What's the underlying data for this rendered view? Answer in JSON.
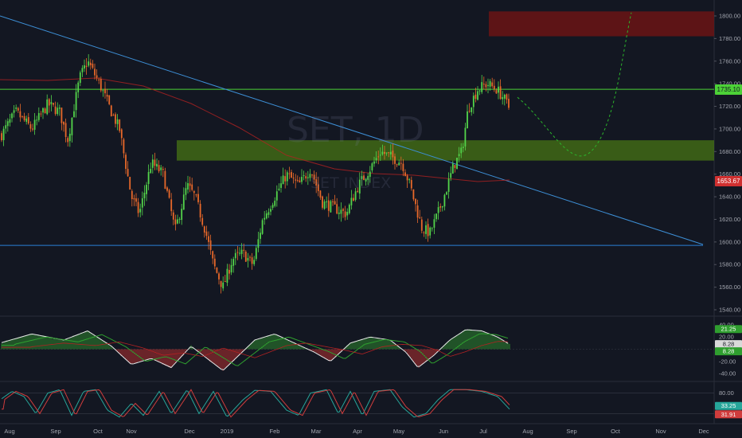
{
  "watermark": {
    "symbol": "SET, 1D",
    "name": "SET INDEX"
  },
  "colors": {
    "background": "#131722",
    "up": "#53d44a",
    "down": "#e8682a",
    "trendline": "#3d8fd6",
    "support": "#2a7fd6",
    "resistance": "#4cd137",
    "zone_green": "#4a7a12",
    "zone_red": "#6b1414",
    "ma": "#b22222",
    "projection": "#2bb52b",
    "axis_text": "#a3a6af"
  },
  "main_pane": {
    "price_ticks": [
      "1800.00",
      "1780.00",
      "1760.00",
      "1740.00",
      "1720.00",
      "1700.00",
      "1680.00",
      "1660.00",
      "1640.00",
      "1620.00",
      "1600.00",
      "1580.00",
      "1560.00",
      "1540.00"
    ],
    "last_price_label": "1735.10",
    "ma_price_label": "1653.67"
  },
  "macd_pane": {
    "ticks": [
      "40.00",
      "20.00",
      "0.00",
      "-20.00",
      "-40.00"
    ],
    "labels": [
      {
        "text": "21.25",
        "color": "#2f9e2f"
      },
      {
        "text": "8.28",
        "color": "#d9d9d9"
      },
      {
        "text": "8.28",
        "color": "#2f9e2f"
      }
    ]
  },
  "stoch_pane": {
    "ticks": [
      "80.00",
      "20.00"
    ],
    "labels": [
      {
        "text": "33.25",
        "color": "#26a69a"
      },
      {
        "text": "31.91",
        "color": "#d03c3c"
      }
    ]
  },
  "time_axis": {
    "labels": [
      "Aug",
      "Sep",
      "Oct",
      "Nov",
      "Dec",
      "2019",
      "Feb",
      "Mar",
      "Apr",
      "May",
      "Jun",
      "Jul",
      "Aug",
      "Sep",
      "Oct",
      "Nov",
      "Dec"
    ]
  },
  "chart_data": {
    "type": "candlestick",
    "title": "",
    "symbol": "SET, 1D",
    "ylim": [
      1535,
      1808
    ],
    "series_close": [
      {
        "month": "Aug 2018",
        "close": 1710
      },
      {
        "month": "Sep 2018",
        "close": 1725
      },
      {
        "month": "Oct 2018",
        "close": 1755
      },
      {
        "month": "Nov 2018",
        "close": 1640
      },
      {
        "month": "Dec 2018",
        "close": 1620
      },
      {
        "month": "Jan 2019",
        "close": 1575
      },
      {
        "month": "Feb 2019",
        "close": 1645
      },
      {
        "month": "Mar 2019",
        "close": 1635
      },
      {
        "month": "Apr 2019",
        "close": 1670
      },
      {
        "month": "May 2019",
        "close": 1610
      },
      {
        "month": "Jun 2019",
        "close": 1670
      },
      {
        "month": "Jul 2019",
        "close": 1735
      }
    ],
    "levels": {
      "resistance": 1735.1,
      "support": 1597,
      "moving_average_last": 1653.67,
      "demand_zone": [
        1672,
        1690
      ],
      "target_zone": [
        1782,
        1804
      ]
    },
    "projection": [
      {
        "month": "Jul 2019",
        "value": 1728
      },
      {
        "month": "Aug 2019",
        "value": 1700
      },
      {
        "month": "Sep 2019",
        "value": 1675
      },
      {
        "month": "Oct 2019",
        "value": 1730
      },
      {
        "month": "Oct 2019",
        "value": 1803
      }
    ],
    "macd": {
      "ylim": [
        -45,
        45
      ],
      "values": {
        "macd": 21.25,
        "signal": 8.28,
        "histogram": 8.28
      }
    },
    "stochastic": {
      "ylim": [
        0,
        100
      ],
      "values": {
        "k": 33.25,
        "d": 31.91
      },
      "bands": [
        20,
        80
      ]
    }
  }
}
